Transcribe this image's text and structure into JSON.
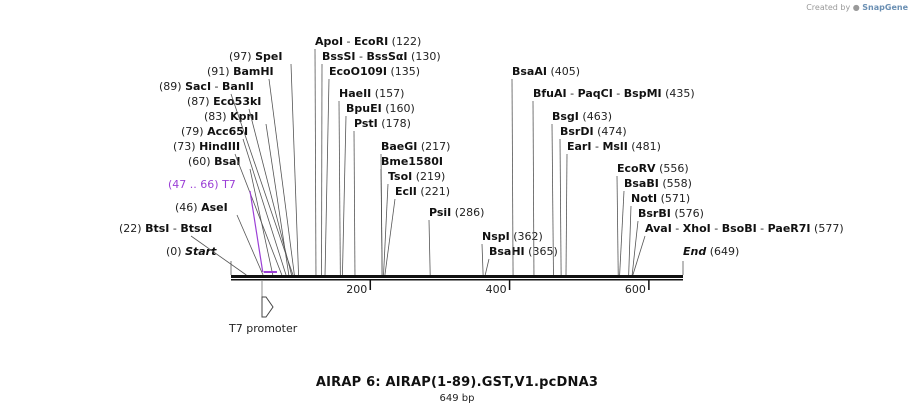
{
  "credit": {
    "prefix": "Created by",
    "brand": "SnapGene"
  },
  "title": "AIRAP 6: AIRAP(1-89).GST,V1.pcDNA3",
  "subtitle": "649 bp",
  "sequence": {
    "length": 649,
    "ticks": [
      200,
      400,
      600
    ]
  },
  "colors": {
    "feature": "#9b3fd6",
    "line": "#555555",
    "backbone": "#111111"
  },
  "feature": {
    "name": "T7 promoter",
    "label": "T7",
    "range": "(47 .. 66)",
    "start": 47,
    "end": 66
  },
  "sites": [
    {
      "id": "start",
      "names": [
        "Start"
      ],
      "pos": "(0)",
      "site": 0,
      "italic": true
    },
    {
      "id": "btsi",
      "names": [
        "BtsI",
        "BtsαI"
      ],
      "pos": "(22)",
      "site": 22
    },
    {
      "id": "asei",
      "names": [
        "AseI"
      ],
      "pos": "(46)",
      "site": 46
    },
    {
      "id": "bsai",
      "names": [
        "BsaI"
      ],
      "pos": "(60)",
      "site": 60
    },
    {
      "id": "hindiii",
      "names": [
        "HindIII"
      ],
      "pos": "(73)",
      "site": 73
    },
    {
      "id": "acc65i",
      "names": [
        "Acc65I"
      ],
      "pos": "(79)",
      "site": 79
    },
    {
      "id": "kpni",
      "names": [
        "KpnI"
      ],
      "pos": "(83)",
      "site": 83
    },
    {
      "id": "eco53ki",
      "names": [
        "Eco53kI"
      ],
      "pos": "(87)",
      "site": 87
    },
    {
      "id": "saci",
      "names": [
        "SacI",
        "BanII"
      ],
      "pos": "(89)",
      "site": 89
    },
    {
      "id": "bamhi",
      "names": [
        "BamHI"
      ],
      "pos": "(91)",
      "site": 91
    },
    {
      "id": "spei",
      "names": [
        "SpeI"
      ],
      "pos": "(97)",
      "site": 97
    },
    {
      "id": "apoi",
      "names": [
        "ApoI",
        "EcoRI"
      ],
      "pos": "(122)",
      "site": 122
    },
    {
      "id": "bsssi",
      "names": [
        "BssSI",
        "BssSαI"
      ],
      "pos": "(130)",
      "site": 130
    },
    {
      "id": "ecoo109i",
      "names": [
        "EcoO109I"
      ],
      "pos": "(135)",
      "site": 135
    },
    {
      "id": "haeii",
      "names": [
        "HaeII"
      ],
      "pos": "(157)",
      "site": 157
    },
    {
      "id": "bpuei",
      "names": [
        "BpuEI"
      ],
      "pos": "(160)",
      "site": 160
    },
    {
      "id": "psti",
      "names": [
        "PstI"
      ],
      "pos": "(178)",
      "site": 178
    },
    {
      "id": "baegi",
      "names": [
        "BaeGI"
      ],
      "pos": "(217)",
      "site": 217
    },
    {
      "id": "bme1580i",
      "names": [
        "Bme1580I"
      ],
      "pos": "",
      "site": 217
    },
    {
      "id": "tsoi",
      "names": [
        "TsoI"
      ],
      "pos": "(219)",
      "site": 219
    },
    {
      "id": "ecli",
      "names": [
        "EclI"
      ],
      "pos": "(221)",
      "site": 221
    },
    {
      "id": "psii",
      "names": [
        "PsiI"
      ],
      "pos": "(286)",
      "site": 286
    },
    {
      "id": "nspi",
      "names": [
        "NspI"
      ],
      "pos": "(362)",
      "site": 362
    },
    {
      "id": "bsahi",
      "names": [
        "BsaHI"
      ],
      "pos": "(365)",
      "site": 365
    },
    {
      "id": "bsaai",
      "names": [
        "BsaAI"
      ],
      "pos": "(405)",
      "site": 405
    },
    {
      "id": "bfuai",
      "names": [
        "BfuAI",
        "PaqCI",
        "BspMI"
      ],
      "pos": "(435)",
      "site": 435
    },
    {
      "id": "bsgi",
      "names": [
        "BsgI"
      ],
      "pos": "(463)",
      "site": 463
    },
    {
      "id": "bsrdi",
      "names": [
        "BsrDI"
      ],
      "pos": "(474)",
      "site": 474
    },
    {
      "id": "eari",
      "names": [
        "EarI",
        "MslI"
      ],
      "pos": "(481)",
      "site": 481
    },
    {
      "id": "ecorv",
      "names": [
        "EcoRV"
      ],
      "pos": "(556)",
      "site": 556
    },
    {
      "id": "bsabi",
      "names": [
        "BsaBI"
      ],
      "pos": "(558)",
      "site": 558
    },
    {
      "id": "noti",
      "names": [
        "NotI"
      ],
      "pos": "(571)",
      "site": 571
    },
    {
      "id": "bsrbi",
      "names": [
        "BsrBI"
      ],
      "pos": "(576)",
      "site": 576
    },
    {
      "id": "avai",
      "names": [
        "AvaI",
        "XhoI",
        "BsoBI",
        "PaeR7I"
      ],
      "pos": "(577)",
      "site": 577
    },
    {
      "id": "end",
      "names": [
        "End"
      ],
      "pos": "(649)",
      "site": 649,
      "italic": true
    }
  ]
}
